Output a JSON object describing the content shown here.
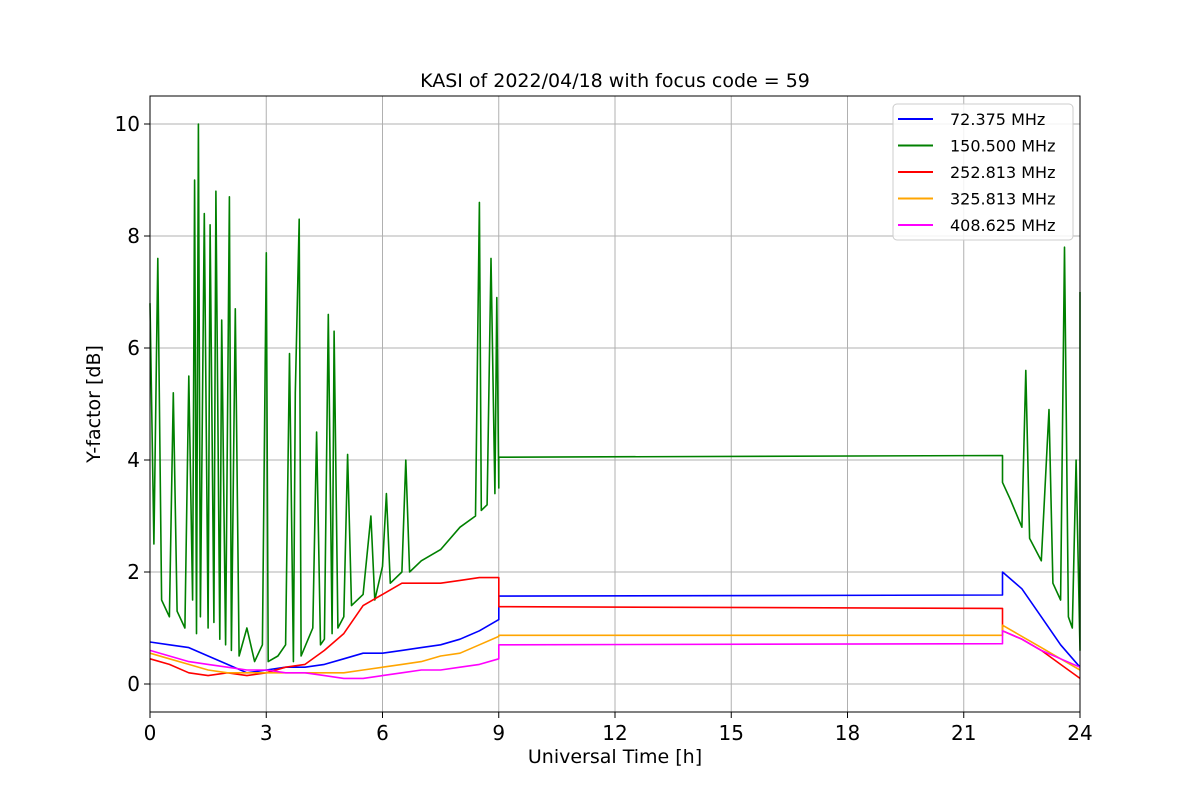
{
  "chart_data": {
    "type": "line",
    "title": "KASI of 2022/04/18 with focus code = 59",
    "xlabel": "Universal Time [h]",
    "ylabel": "Y-factor [dB]",
    "xlim": [
      0,
      24
    ],
    "ylim": [
      -0.5,
      10.5
    ],
    "x_ticks": [
      "0",
      "3",
      "6",
      "9",
      "12",
      "15",
      "18",
      "21",
      "24"
    ],
    "y_ticks": [
      "0",
      "2",
      "4",
      "6",
      "8",
      "10"
    ],
    "grid": true,
    "legend_position": "top-right",
    "series": [
      {
        "name": " 72.375 MHz",
        "color": "#0000ff",
        "points": [
          [
            0,
            0.75
          ],
          [
            0.5,
            0.7
          ],
          [
            1,
            0.65
          ],
          [
            1.5,
            0.5
          ],
          [
            2,
            0.35
          ],
          [
            2.5,
            0.2
          ],
          [
            3,
            0.25
          ],
          [
            3.5,
            0.3
          ],
          [
            4,
            0.3
          ],
          [
            4.5,
            0.35
          ],
          [
            5,
            0.45
          ],
          [
            5.5,
            0.55
          ],
          [
            6,
            0.55
          ],
          [
            6.5,
            0.6
          ],
          [
            7,
            0.65
          ],
          [
            7.5,
            0.7
          ],
          [
            8,
            0.8
          ],
          [
            8.5,
            0.95
          ],
          [
            9,
            1.15
          ],
          [
            9,
            1.57
          ],
          [
            22,
            1.59
          ],
          [
            22,
            2.0
          ],
          [
            22.5,
            1.7
          ],
          [
            23,
            1.2
          ],
          [
            23.5,
            0.7
          ],
          [
            24,
            0.3
          ]
        ]
      },
      {
        "name": "150.500 MHz",
        "color": "#008000",
        "points": [
          [
            0,
            6.8
          ],
          [
            0.1,
            2.5
          ],
          [
            0.2,
            7.6
          ],
          [
            0.3,
            1.5
          ],
          [
            0.5,
            1.2
          ],
          [
            0.6,
            5.2
          ],
          [
            0.7,
            1.3
          ],
          [
            0.9,
            1.0
          ],
          [
            1.0,
            5.5
          ],
          [
            1.1,
            1.5
          ],
          [
            1.15,
            9.0
          ],
          [
            1.2,
            0.9
          ],
          [
            1.25,
            10.0
          ],
          [
            1.3,
            1.2
          ],
          [
            1.4,
            8.4
          ],
          [
            1.5,
            1.0
          ],
          [
            1.55,
            8.2
          ],
          [
            1.65,
            1.1
          ],
          [
            1.7,
            8.8
          ],
          [
            1.8,
            0.8
          ],
          [
            1.85,
            6.5
          ],
          [
            1.95,
            0.7
          ],
          [
            2.05,
            8.7
          ],
          [
            2.1,
            0.6
          ],
          [
            2.2,
            6.7
          ],
          [
            2.3,
            0.5
          ],
          [
            2.5,
            1.0
          ],
          [
            2.7,
            0.4
          ],
          [
            2.9,
            0.7
          ],
          [
            3.0,
            7.7
          ],
          [
            3.05,
            0.4
          ],
          [
            3.3,
            0.5
          ],
          [
            3.5,
            0.7
          ],
          [
            3.6,
            5.9
          ],
          [
            3.7,
            0.4
          ],
          [
            3.75,
            5.2
          ],
          [
            3.85,
            8.3
          ],
          [
            3.9,
            0.5
          ],
          [
            4.2,
            1.0
          ],
          [
            4.3,
            4.5
          ],
          [
            4.4,
            0.7
          ],
          [
            4.5,
            0.8
          ],
          [
            4.6,
            6.6
          ],
          [
            4.7,
            0.9
          ],
          [
            4.75,
            6.3
          ],
          [
            4.85,
            1.0
          ],
          [
            5.0,
            1.2
          ],
          [
            5.1,
            4.1
          ],
          [
            5.2,
            1.4
          ],
          [
            5.5,
            1.6
          ],
          [
            5.7,
            3.0
          ],
          [
            5.8,
            1.5
          ],
          [
            6.0,
            2.1
          ],
          [
            6.1,
            3.4
          ],
          [
            6.2,
            1.8
          ],
          [
            6.5,
            2.0
          ],
          [
            6.6,
            4.0
          ],
          [
            6.7,
            2.0
          ],
          [
            7.0,
            2.2
          ],
          [
            7.5,
            2.4
          ],
          [
            8.0,
            2.8
          ],
          [
            8.4,
            3.0
          ],
          [
            8.5,
            8.6
          ],
          [
            8.55,
            3.1
          ],
          [
            8.7,
            3.2
          ],
          [
            8.8,
            7.6
          ],
          [
            8.9,
            3.4
          ],
          [
            8.95,
            6.9
          ],
          [
            9.0,
            3.5
          ],
          [
            9.0,
            4.05
          ],
          [
            22.0,
            4.08
          ],
          [
            22.0,
            3.6
          ],
          [
            22.2,
            3.3
          ],
          [
            22.5,
            2.8
          ],
          [
            22.6,
            5.6
          ],
          [
            22.7,
            2.6
          ],
          [
            23.0,
            2.2
          ],
          [
            23.2,
            4.9
          ],
          [
            23.3,
            1.8
          ],
          [
            23.5,
            1.5
          ],
          [
            23.6,
            7.8
          ],
          [
            23.7,
            1.2
          ],
          [
            23.8,
            1.0
          ],
          [
            23.9,
            4.0
          ],
          [
            24.0,
            0.6
          ],
          [
            24.0,
            7.0
          ]
        ]
      },
      {
        "name": "252.813 MHz",
        "color": "#ff0000",
        "points": [
          [
            0,
            0.45
          ],
          [
            0.5,
            0.35
          ],
          [
            1,
            0.2
          ],
          [
            1.5,
            0.15
          ],
          [
            2,
            0.2
          ],
          [
            2.5,
            0.15
          ],
          [
            3,
            0.2
          ],
          [
            3.5,
            0.3
          ],
          [
            4,
            0.35
          ],
          [
            4.5,
            0.6
          ],
          [
            5,
            0.9
          ],
          [
            5.5,
            1.4
          ],
          [
            6,
            1.6
          ],
          [
            6.5,
            1.8
          ],
          [
            7,
            1.8
          ],
          [
            7.5,
            1.8
          ],
          [
            8,
            1.85
          ],
          [
            8.5,
            1.9
          ],
          [
            9,
            1.9
          ],
          [
            9,
            1.38
          ],
          [
            22,
            1.35
          ],
          [
            22,
            0.95
          ],
          [
            22.5,
            0.8
          ],
          [
            23,
            0.6
          ],
          [
            23.5,
            0.35
          ],
          [
            24,
            0.1
          ]
        ]
      },
      {
        "name": "325.813 MHz",
        "color": "#ffa500",
        "points": [
          [
            0,
            0.55
          ],
          [
            0.5,
            0.45
          ],
          [
            1,
            0.35
          ],
          [
            1.5,
            0.25
          ],
          [
            2,
            0.2
          ],
          [
            2.5,
            0.2
          ],
          [
            3,
            0.2
          ],
          [
            3.5,
            0.2
          ],
          [
            4,
            0.2
          ],
          [
            4.5,
            0.2
          ],
          [
            5,
            0.2
          ],
          [
            5.5,
            0.25
          ],
          [
            6,
            0.3
          ],
          [
            6.5,
            0.35
          ],
          [
            7,
            0.4
          ],
          [
            7.5,
            0.5
          ],
          [
            8,
            0.55
          ],
          [
            8.5,
            0.7
          ],
          [
            9,
            0.85
          ],
          [
            9,
            0.87
          ],
          [
            22,
            0.87
          ],
          [
            22,
            1.05
          ],
          [
            22.5,
            0.85
          ],
          [
            23,
            0.65
          ],
          [
            23.5,
            0.45
          ],
          [
            24,
            0.25
          ]
        ]
      },
      {
        "name": "408.625 MHz",
        "color": "#ff00ff",
        "points": [
          [
            0,
            0.6
          ],
          [
            0.5,
            0.5
          ],
          [
            1,
            0.4
          ],
          [
            1.5,
            0.35
          ],
          [
            2,
            0.3
          ],
          [
            2.5,
            0.25
          ],
          [
            3,
            0.25
          ],
          [
            3.5,
            0.2
          ],
          [
            4,
            0.2
          ],
          [
            4.5,
            0.15
          ],
          [
            5,
            0.1
          ],
          [
            5.5,
            0.1
          ],
          [
            6,
            0.15
          ],
          [
            6.5,
            0.2
          ],
          [
            7,
            0.25
          ],
          [
            7.5,
            0.25
          ],
          [
            8,
            0.3
          ],
          [
            8.5,
            0.35
          ],
          [
            9,
            0.45
          ],
          [
            9,
            0.7
          ],
          [
            22,
            0.72
          ],
          [
            22,
            0.95
          ],
          [
            22.5,
            0.8
          ],
          [
            23,
            0.6
          ],
          [
            23.5,
            0.45
          ],
          [
            24,
            0.3
          ]
        ]
      }
    ]
  }
}
